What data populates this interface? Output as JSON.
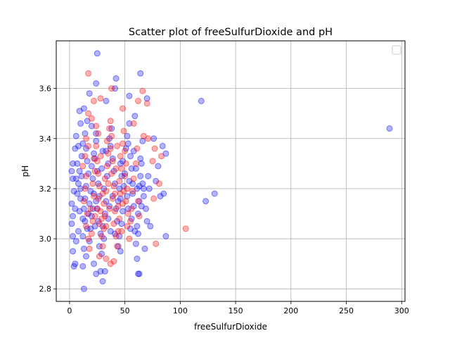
{
  "chart_data": {
    "type": "scatter",
    "title": "Scatter plot of freeSulfurDioxide and pH",
    "xlabel": "freeSulfurDioxide",
    "ylabel": "pH",
    "xlim": [
      -12,
      303
    ],
    "ylim": [
      2.75,
      3.79
    ],
    "xticks": [
      0,
      50,
      100,
      150,
      200,
      250,
      300
    ],
    "xtick_labels": [
      "0",
      "50",
      "100",
      "150",
      "200",
      "250",
      "300"
    ],
    "yticks": [
      2.8,
      3.0,
      3.2,
      3.4,
      3.6
    ],
    "ytick_labels": [
      "2.8",
      "3.0",
      "3.2",
      "3.4",
      "3.6"
    ],
    "grid": true,
    "legend": {
      "placement": "top-right",
      "entries": []
    },
    "colors": {
      "series_blue": "#0000ff",
      "series_red": "#ff0000",
      "grid": "#b0b0b0"
    },
    "series": [
      {
        "color": "#0000ff",
        "points": [
          [
            289,
            3.44
          ],
          [
            119,
            3.55
          ],
          [
            131,
            3.18
          ],
          [
            123,
            3.15
          ],
          [
            87,
            3.34
          ],
          [
            85,
            3.18
          ],
          [
            87,
            3.01
          ],
          [
            80,
            3.29
          ],
          [
            82,
            3.17
          ],
          [
            64,
            3.66
          ],
          [
            25,
            3.74
          ],
          [
            13,
            2.8
          ],
          [
            30,
            2.83
          ],
          [
            24,
            2.86
          ],
          [
            63,
            2.86
          ],
          [
            62,
            2.86
          ],
          [
            32,
            2.87
          ],
          [
            28,
            2.87
          ],
          [
            22,
            2.9
          ],
          [
            5,
            2.9
          ],
          [
            4,
            2.89
          ],
          [
            12,
            2.89
          ],
          [
            3,
            2.95
          ],
          [
            70,
            3.56
          ],
          [
            59,
            3.49
          ],
          [
            66,
            3.39
          ],
          [
            76,
            3.4
          ],
          [
            84,
            3.37
          ],
          [
            71,
            3.25
          ],
          [
            78,
            3.23
          ],
          [
            73,
            3.05
          ],
          [
            67,
            3.2
          ],
          [
            64,
            3.32
          ],
          [
            61,
            2.92
          ],
          [
            68,
            2.96
          ],
          [
            18,
            3.58
          ],
          [
            24,
            3.62
          ],
          [
            42,
            3.64
          ],
          [
            41,
            3.6
          ],
          [
            54,
            3.57
          ],
          [
            33,
            3.55
          ],
          [
            9,
            3.51
          ],
          [
            13,
            3.52
          ],
          [
            16,
            3.47
          ],
          [
            20,
            3.45
          ],
          [
            24,
            3.42
          ],
          [
            10,
            3.46
          ],
          [
            6,
            3.41
          ],
          [
            5,
            3.36
          ],
          [
            3,
            3.3
          ],
          [
            2,
            3.27
          ],
          [
            3,
            3.24
          ],
          [
            4,
            3.19
          ],
          [
            2,
            3.14
          ],
          [
            3,
            3.09
          ],
          [
            2,
            3.06
          ],
          [
            3,
            3.01
          ],
          [
            6,
            2.99
          ],
          [
            8,
            3.03
          ],
          [
            9,
            3.11
          ],
          [
            10,
            3.16
          ],
          [
            8,
            3.22
          ],
          [
            9,
            3.27
          ],
          [
            11,
            3.33
          ],
          [
            12,
            3.38
          ],
          [
            14,
            3.42
          ],
          [
            15,
            3.36
          ],
          [
            16,
            3.31
          ],
          [
            17,
            3.26
          ],
          [
            15,
            3.21
          ],
          [
            14,
            3.16
          ],
          [
            13,
            3.12
          ],
          [
            14,
            3.07
          ],
          [
            12,
            3.01
          ],
          [
            13,
            2.96
          ],
          [
            15,
            2.93
          ],
          [
            18,
            2.99
          ],
          [
            19,
            3.04
          ],
          [
            20,
            3.09
          ],
          [
            18,
            3.14
          ],
          [
            19,
            3.19
          ],
          [
            21,
            3.24
          ],
          [
            20,
            3.29
          ],
          [
            22,
            3.34
          ],
          [
            24,
            3.39
          ],
          [
            23,
            3.32
          ],
          [
            25,
            3.27
          ],
          [
            26,
            3.22
          ],
          [
            27,
            3.17
          ],
          [
            25,
            3.12
          ],
          [
            26,
            3.07
          ],
          [
            28,
            3.02
          ],
          [
            27,
            2.97
          ],
          [
            29,
            2.94
          ],
          [
            31,
            3.0
          ],
          [
            30,
            3.05
          ],
          [
            32,
            3.1
          ],
          [
            33,
            3.15
          ],
          [
            31,
            3.2
          ],
          [
            34,
            3.25
          ],
          [
            35,
            3.3
          ],
          [
            33,
            3.35
          ],
          [
            36,
            3.4
          ],
          [
            38,
            3.44
          ],
          [
            37,
            3.37
          ],
          [
            39,
            3.32
          ],
          [
            40,
            3.27
          ],
          [
            41,
            3.22
          ],
          [
            39,
            3.17
          ],
          [
            42,
            3.12
          ],
          [
            43,
            3.07
          ],
          [
            41,
            3.02
          ],
          [
            44,
            2.97
          ],
          [
            46,
            2.95
          ],
          [
            45,
            3.01
          ],
          [
            47,
            3.06
          ],
          [
            48,
            3.11
          ],
          [
            46,
            3.16
          ],
          [
            49,
            3.21
          ],
          [
            50,
            3.26
          ],
          [
            48,
            3.31
          ],
          [
            51,
            3.36
          ],
          [
            52,
            3.41
          ],
          [
            54,
            3.46
          ],
          [
            53,
            3.38
          ],
          [
            55,
            3.33
          ],
          [
            56,
            3.28
          ],
          [
            54,
            3.23
          ],
          [
            57,
            3.18
          ],
          [
            58,
            3.13
          ],
          [
            56,
            3.08
          ],
          [
            59,
            3.03
          ],
          [
            60,
            2.98
          ],
          [
            61,
            3.05
          ],
          [
            62,
            3.1
          ],
          [
            63,
            3.15
          ],
          [
            61,
            3.2
          ],
          [
            64,
            3.25
          ],
          [
            65,
            3.3
          ],
          [
            66,
            3.22
          ],
          [
            67,
            3.17
          ],
          [
            69,
            3.12
          ],
          [
            70,
            3.07
          ],
          [
            72,
            3.2
          ],
          [
            5,
            3.12
          ],
          [
            7,
            3.18
          ],
          [
            6,
            3.24
          ],
          [
            7,
            3.3
          ],
          [
            8,
            3.37
          ],
          [
            10,
            3.2
          ],
          [
            11,
            3.25
          ],
          [
            12,
            3.08
          ],
          [
            16,
            3.04
          ],
          [
            17,
            3.1
          ],
          [
            21,
            3.12
          ],
          [
            22,
            3.18
          ],
          [
            23,
            3.05
          ],
          [
            24,
            3.15
          ],
          [
            29,
            3.28
          ],
          [
            30,
            3.35
          ],
          [
            35,
            3.08
          ],
          [
            36,
            3.13
          ],
          [
            37,
            3.03
          ],
          [
            44,
            3.15
          ],
          [
            45,
            3.2
          ],
          [
            46,
            3.3
          ],
          [
            47,
            3.25
          ],
          [
            52,
            3.17
          ],
          [
            53,
            3.12
          ],
          [
            55,
            3.04
          ],
          [
            57,
            3.22
          ],
          [
            58,
            3.35
          ],
          [
            60,
            3.28
          ],
          [
            62,
            3.02
          ],
          [
            63,
            3.21
          ],
          [
            65,
            3.13
          ]
        ]
      },
      {
        "color": "#ff0000",
        "points": [
          [
            105,
            3.04
          ],
          [
            78,
            2.98
          ],
          [
            83,
            3.33
          ],
          [
            81,
            3.22
          ],
          [
            17,
            3.66
          ],
          [
            38,
            3.6
          ],
          [
            66,
            3.59
          ],
          [
            70,
            3.54
          ],
          [
            62,
            3.55
          ],
          [
            28,
            3.56
          ],
          [
            22,
            3.55
          ],
          [
            48,
            3.52
          ],
          [
            58,
            3.46
          ],
          [
            67,
            3.41
          ],
          [
            71,
            3.4
          ],
          [
            77,
            3.36
          ],
          [
            75,
            3.31
          ],
          [
            76,
            3.16
          ],
          [
            33,
            2.92
          ],
          [
            37,
            2.9
          ],
          [
            40,
            2.91
          ],
          [
            27,
            2.93
          ],
          [
            17,
            3.5
          ],
          [
            20,
            3.48
          ],
          [
            24,
            3.45
          ],
          [
            26,
            3.42
          ],
          [
            15,
            3.4
          ],
          [
            17,
            3.37
          ],
          [
            14,
            3.33
          ],
          [
            12,
            3.29
          ],
          [
            15,
            3.25
          ],
          [
            14,
            3.2
          ],
          [
            13,
            3.15
          ],
          [
            16,
            3.1
          ],
          [
            15,
            3.05
          ],
          [
            17,
            3.0
          ],
          [
            18,
            2.96
          ],
          [
            20,
            3.02
          ],
          [
            21,
            3.07
          ],
          [
            19,
            3.12
          ],
          [
            22,
            3.17
          ],
          [
            21,
            3.22
          ],
          [
            23,
            3.27
          ],
          [
            22,
            3.32
          ],
          [
            24,
            3.37
          ],
          [
            25,
            3.31
          ],
          [
            26,
            3.26
          ],
          [
            27,
            3.21
          ],
          [
            26,
            3.16
          ],
          [
            28,
            3.11
          ],
          [
            27,
            3.06
          ],
          [
            29,
            3.01
          ],
          [
            30,
            2.97
          ],
          [
            31,
            3.04
          ],
          [
            32,
            3.09
          ],
          [
            31,
            3.14
          ],
          [
            33,
            3.19
          ],
          [
            32,
            3.24
          ],
          [
            34,
            3.29
          ],
          [
            35,
            3.34
          ],
          [
            34,
            3.39
          ],
          [
            36,
            3.44
          ],
          [
            37,
            3.47
          ],
          [
            38,
            3.41
          ],
          [
            37,
            3.36
          ],
          [
            39,
            3.31
          ],
          [
            38,
            3.26
          ],
          [
            40,
            3.21
          ],
          [
            39,
            3.16
          ],
          [
            41,
            3.11
          ],
          [
            40,
            3.06
          ],
          [
            42,
            3.01
          ],
          [
            43,
            2.97
          ],
          [
            44,
            3.03
          ],
          [
            45,
            3.08
          ],
          [
            44,
            3.13
          ],
          [
            46,
            3.18
          ],
          [
            45,
            3.23
          ],
          [
            47,
            3.28
          ],
          [
            46,
            3.33
          ],
          [
            48,
            3.38
          ],
          [
            49,
            3.43
          ],
          [
            50,
            3.35
          ],
          [
            51,
            3.3
          ],
          [
            50,
            3.25
          ],
          [
            52,
            3.2
          ],
          [
            51,
            3.15
          ],
          [
            53,
            3.1
          ],
          [
            52,
            3.05
          ],
          [
            54,
            3.0
          ],
          [
            55,
            3.07
          ],
          [
            56,
            3.12
          ],
          [
            57,
            3.19
          ],
          [
            58,
            3.24
          ],
          [
            60,
            3.3
          ],
          [
            61,
            3.36
          ],
          [
            62,
            3.15
          ],
          [
            63,
            3.09
          ],
          [
            29,
            3.08
          ],
          [
            30,
            3.18
          ],
          [
            33,
            3.05
          ],
          [
            35,
            3.22
          ],
          [
            36,
            3.12
          ],
          [
            41,
            3.18
          ],
          [
            42,
            3.28
          ],
          [
            43,
            3.37
          ],
          [
            47,
            3.03
          ],
          [
            48,
            3.14
          ],
          [
            49,
            3.19
          ],
          [
            28,
            3.33
          ],
          [
            25,
            3.12
          ],
          [
            23,
            3.09
          ]
        ]
      }
    ]
  }
}
